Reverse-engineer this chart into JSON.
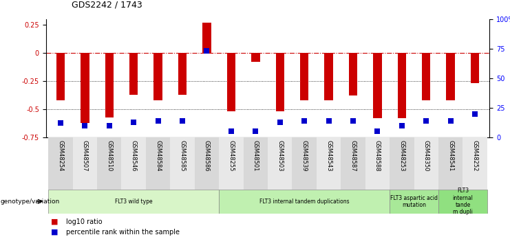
{
  "title": "GDS2242 / 1743",
  "samples": [
    "GSM48254",
    "GSM48507",
    "GSM48510",
    "GSM48546",
    "GSM48584",
    "GSM48585",
    "GSM48586",
    "GSM48255",
    "GSM48501",
    "GSM48503",
    "GSM48539",
    "GSM48543",
    "GSM48587",
    "GSM48588",
    "GSM48253",
    "GSM48350",
    "GSM48541",
    "GSM48252"
  ],
  "log10_ratio": [
    -0.42,
    -0.62,
    -0.57,
    -0.37,
    -0.42,
    -0.37,
    0.27,
    -0.52,
    -0.08,
    -0.52,
    -0.42,
    -0.42,
    -0.38,
    -0.58,
    -0.58,
    -0.42,
    -0.42,
    -0.27
  ],
  "percentile_rank": [
    12,
    10,
    10,
    13,
    14,
    14,
    73,
    5,
    5,
    13,
    14,
    14,
    14,
    5,
    10,
    14,
    14,
    20
  ],
  "bar_color": "#cc0000",
  "dot_color": "#0000cc",
  "ref_line_color": "#cc0000",
  "grid_color": "#000000",
  "bg_color": "#ffffff",
  "ylim_left": [
    -0.75,
    0.3
  ],
  "ylim_right": [
    0,
    100
  ],
  "yticks_left": [
    -0.75,
    -0.5,
    -0.25,
    0,
    0.25
  ],
  "ytick_labels_left": [
    "-0.75",
    "-0.5",
    "-0.25",
    "0",
    "0.25"
  ],
  "yticks_right": [
    0,
    25,
    50,
    75,
    100
  ],
  "ytick_labels_right": [
    "0",
    "25",
    "50",
    "75",
    "100%"
  ],
  "groups": [
    {
      "label": "FLT3 wild type",
      "start": 0,
      "end": 6,
      "color": "#d8f5c8"
    },
    {
      "label": "FLT3 internal tandem duplications",
      "start": 7,
      "end": 13,
      "color": "#c0f0b0"
    },
    {
      "label": "FLT3 aspartic acid\nmutation",
      "start": 14,
      "end": 15,
      "color": "#a8e898"
    },
    {
      "label": "FLT3\ninternal\ntande\nm dupli",
      "start": 16,
      "end": 17,
      "color": "#90e080"
    }
  ],
  "bar_width": 0.35,
  "dot_size": 30,
  "genotype_label": "genotype/variation",
  "legend_red": "log10 ratio",
  "legend_blue": "percentile rank within the sample"
}
